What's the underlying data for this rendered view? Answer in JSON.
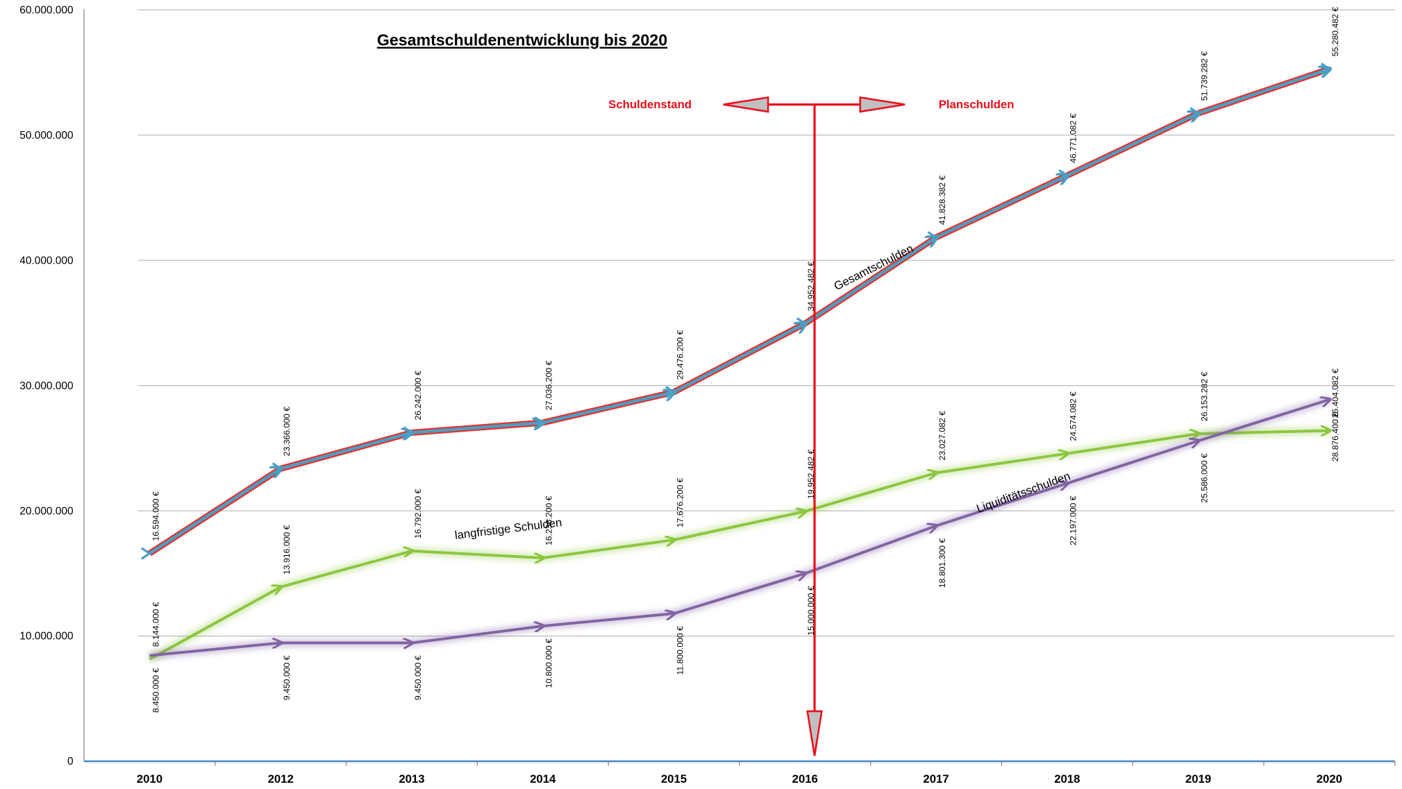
{
  "chart_data": {
    "type": "line",
    "title": "Gesamtschuldenentwicklung bis 2020",
    "annotations": [
      "Schuldenstand",
      "Planschulden"
    ],
    "categories": [
      "2010",
      "2012",
      "2013",
      "2014",
      "2015",
      "2016",
      "2017",
      "2018",
      "2019",
      "2020"
    ],
    "ylim": [
      0,
      60000000
    ],
    "yticks": [
      0,
      {
        "value": 10000000,
        "label": "10.000.000"
      },
      {
        "value": 20000000,
        "label": "20.000.000"
      },
      {
        "value": 30000000,
        "label": "30.000.000"
      },
      {
        "value": 40000000,
        "label": "40.000.000"
      },
      {
        "value": 50000000,
        "label": "50.000.000"
      },
      {
        "value": 60000000,
        "label": "60.000.000"
      }
    ],
    "grid": true,
    "series": [
      {
        "name": "Gesamtschulden",
        "color": "#4a9fc4",
        "edge_color": "#e8302c",
        "values": [
          16594000,
          23366000,
          26242000,
          27036200,
          29476200,
          34952482,
          41828382,
          46771082,
          51739282,
          55280482
        ],
        "value_labels": [
          "16.594.000 €",
          "23.366.000 €",
          "26.242.000 €",
          "27.036.200 €",
          "29.476.200 €",
          "34.952.482 €",
          "41.828.382 €",
          "46.771.082 €",
          "51.739.282 €",
          "55.280.482 €"
        ]
      },
      {
        "name": "langfristige Schulden",
        "color": "#8cc63f",
        "values": [
          8144000,
          13916000,
          16792000,
          16236200,
          17676200,
          19952482,
          23027082,
          24574082,
          26153282,
          26404082
        ],
        "value_labels": [
          "8.144.000 €",
          "13.916.000 €",
          "16.792.000 €",
          "16.236.200 €",
          "17.676.200 €",
          "19.952.482 €",
          "23.027.082 €",
          "24.574.082 €",
          "26.153.282 €",
          "26.404.082 €"
        ]
      },
      {
        "name": "Liquiditätsschulden",
        "color": "#8064a2",
        "values": [
          8450000,
          9450000,
          9450000,
          10800000,
          11800000,
          15000000,
          18801300,
          22197000,
          25586000,
          28876400
        ],
        "value_labels": [
          "8.450.000 €",
          "9.450.000 €",
          "9.450.000 €",
          "10.800.000 €",
          "11.800.000 €",
          "15.000.000 €",
          "18.801.300 €",
          "22.197.000 €",
          "25.586.000 €",
          "28.876.400 €"
        ]
      }
    ]
  }
}
